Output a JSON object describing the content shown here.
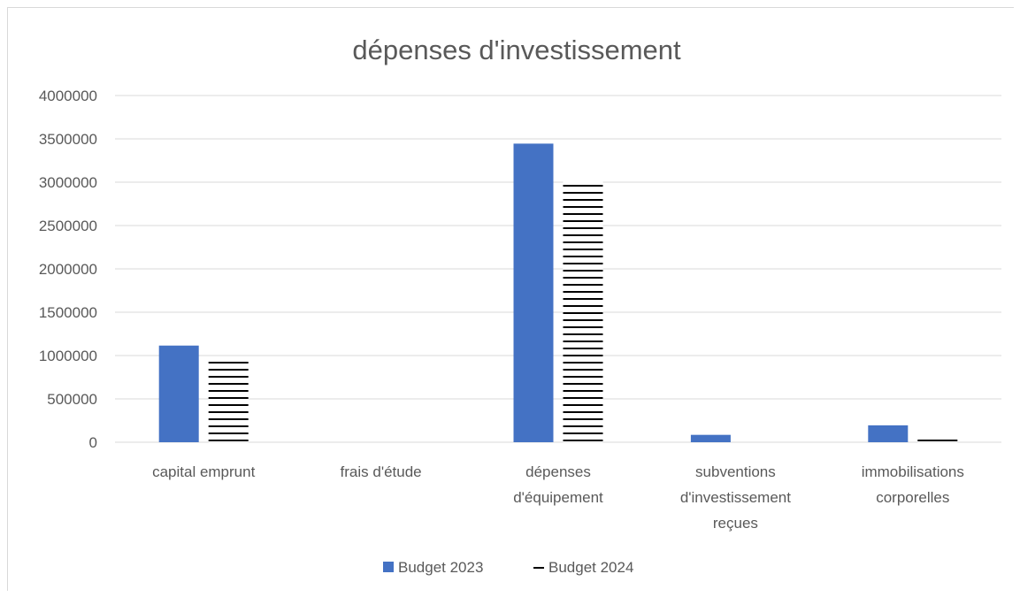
{
  "chart_data": {
    "type": "bar",
    "title": "dépenses d'investissement",
    "xlabel": "",
    "ylabel": "",
    "categories": [
      [
        "capital emprunt"
      ],
      [
        "frais d'étude"
      ],
      [
        "dépenses",
        "d'équipement"
      ],
      [
        "subventions",
        "d'investissement",
        "reçues"
      ],
      [
        "immobilisations",
        "corporelles"
      ]
    ],
    "series": [
      {
        "name": "Budget 2023",
        "color": "#4472c4",
        "pattern": "solid",
        "values": [
          1115000,
          0,
          3445000,
          85000,
          195000
        ]
      },
      {
        "name": "Budget 2024",
        "color": "#000000",
        "pattern": "horizontal-lines",
        "values": [
          935000,
          0,
          3010000,
          0,
          55000
        ]
      }
    ],
    "ylim": [
      0,
      4000000
    ],
    "yticks": [
      "0",
      "500000",
      "1000000",
      "1500000",
      "2000000",
      "2500000",
      "3000000",
      "3500000",
      "4000000"
    ],
    "grid": true,
    "legend_position": "bottom"
  }
}
